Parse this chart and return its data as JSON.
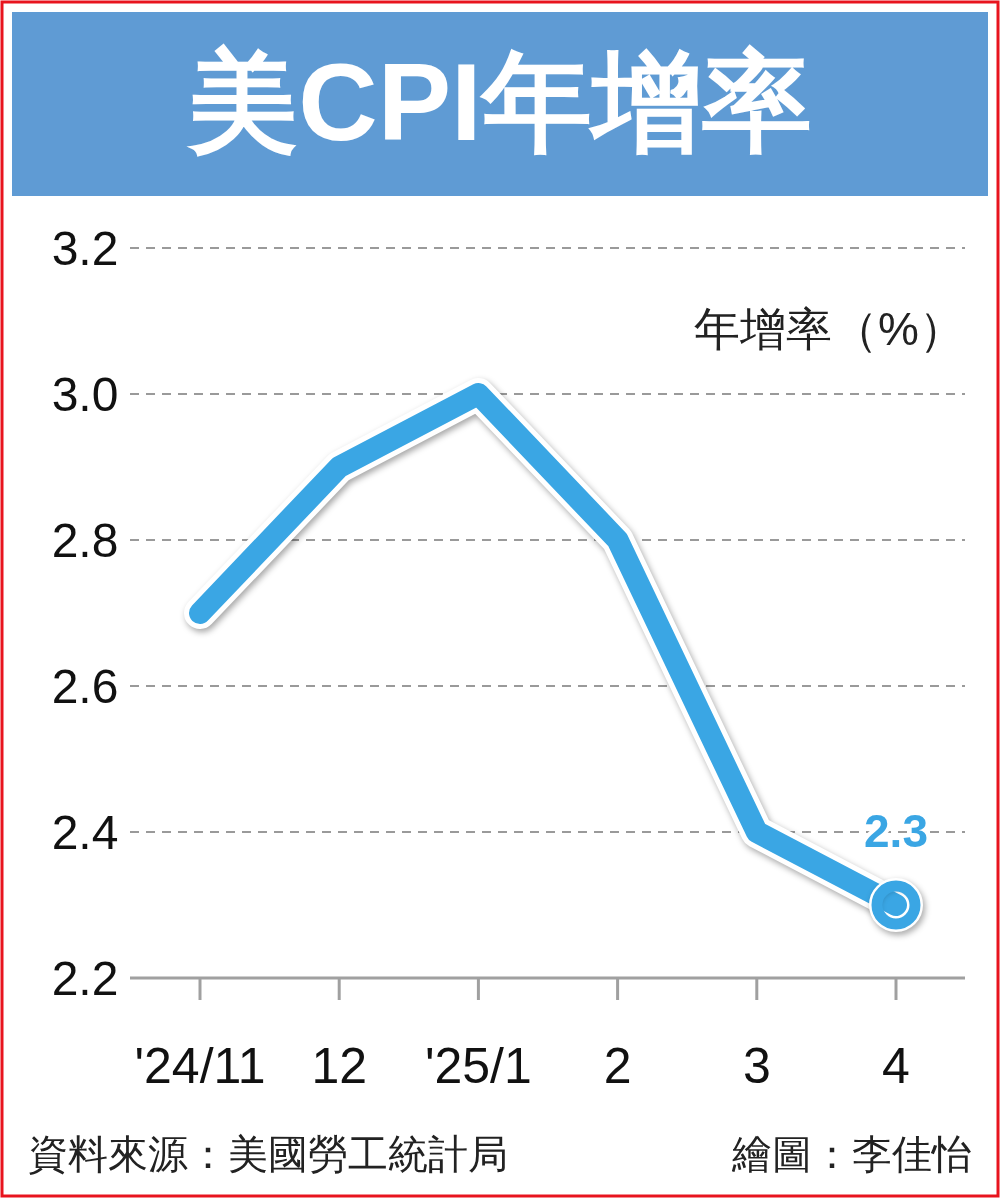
{
  "chart_data": {
    "type": "line",
    "title": "美CPI年增率",
    "ylabel": "年增率（%）",
    "categories": [
      "'24/11",
      "12",
      "'25/1",
      "2",
      "3",
      "4"
    ],
    "series": [
      {
        "color": "#3aa6e4",
        "values": [
          2.7,
          2.9,
          3.0,
          2.8,
          2.4,
          2.3
        ]
      },
      {
        "type": "scatter",
        "color": "#3aa6e4",
        "x": [
          "4"
        ],
        "values": [
          2.3
        ],
        "value_labels": [
          "2.3"
        ],
        "marker": "circle"
      }
    ],
    "ylim": [
      2.2,
      3.2
    ],
    "yticks": [
      {
        "value": 2.2,
        "label": "2.2"
      },
      {
        "value": 2.4,
        "label": "2.4"
      },
      {
        "value": 2.6,
        "label": "2.6"
      },
      {
        "value": 2.8,
        "label": "2.8"
      },
      {
        "value": 3.0,
        "label": "3.0"
      },
      {
        "value": 3.2,
        "label": "3.2"
      }
    ],
    "grid": "y",
    "annotations": [
      "資料來源：美國勞工統計局",
      "繪圖：李佳怡"
    ]
  }
}
